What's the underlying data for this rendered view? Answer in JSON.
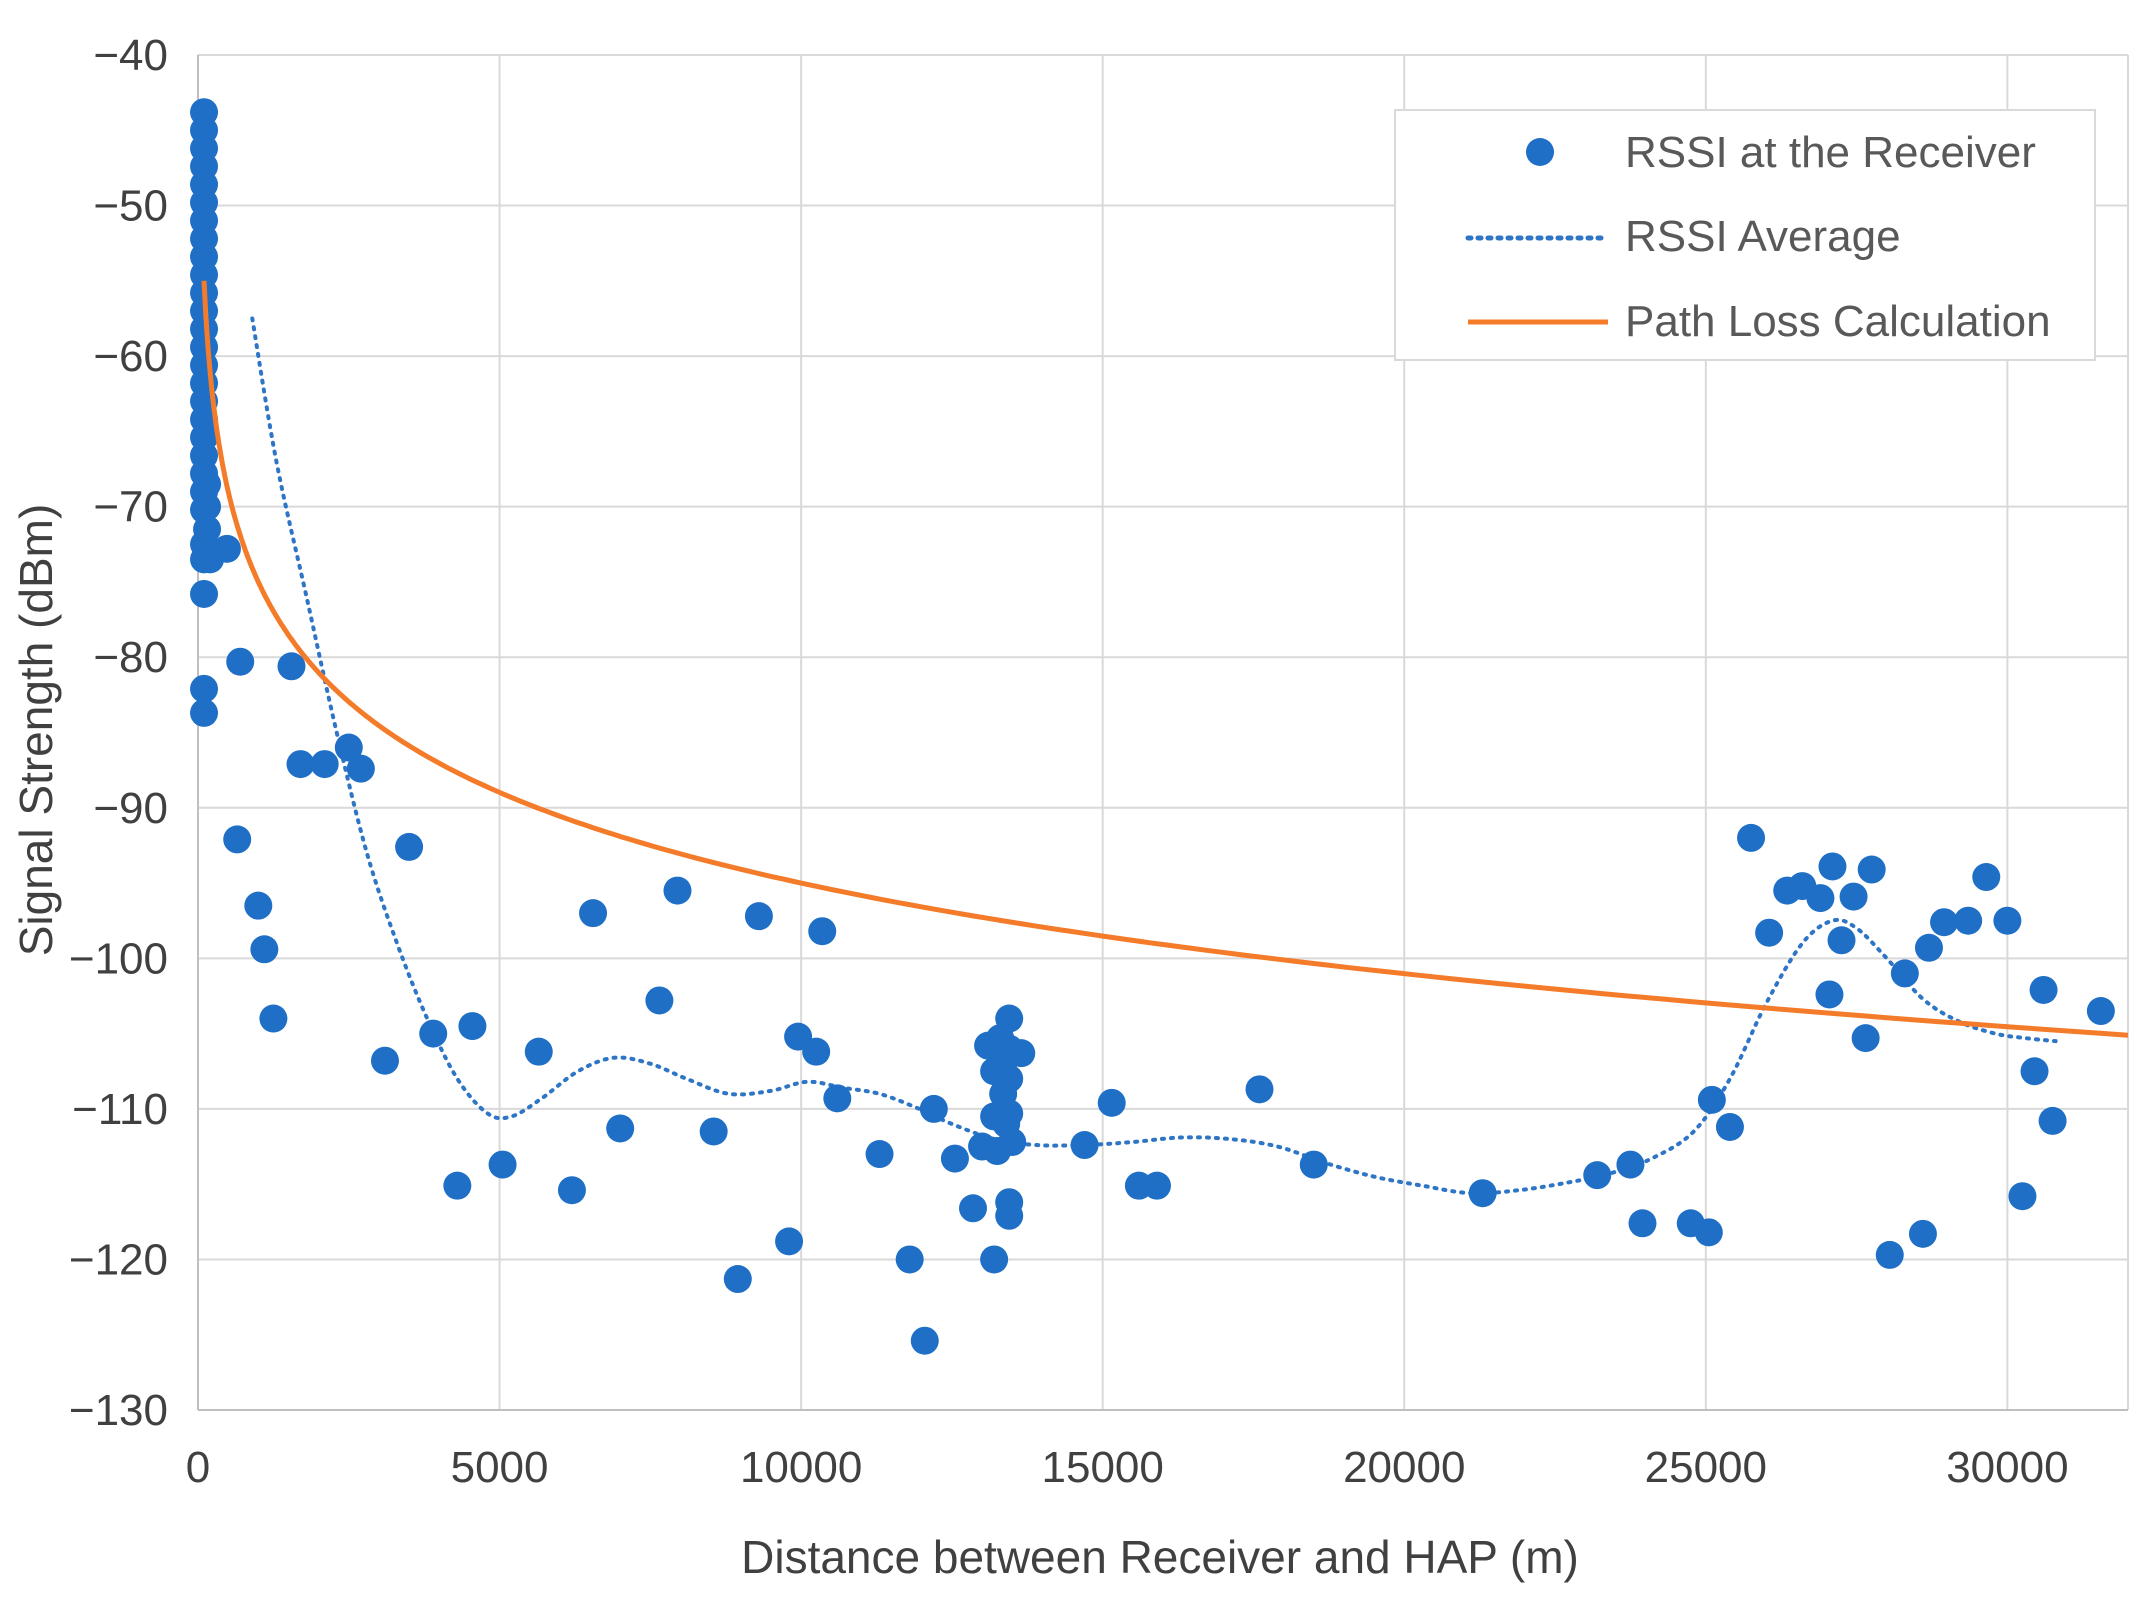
{
  "chart_data": {
    "type": "scatter",
    "title": "",
    "xlabel": "Distance between Receiver and HAP  (m)",
    "ylabel": "Signal Strength (dBm)",
    "xlim": [
      0,
      32000
    ],
    "ylim": [
      -130,
      -40
    ],
    "grid": true,
    "legend_position": "top-right",
    "x_ticks": [
      0,
      5000,
      10000,
      15000,
      20000,
      25000,
      30000
    ],
    "x_tick_labels": [
      "0",
      "5000",
      "10000",
      "15000",
      "20000",
      "25000",
      "30000"
    ],
    "y_ticks": [
      -40,
      -50,
      -60,
      -70,
      -80,
      -90,
      -100,
      -110,
      -120,
      -130
    ],
    "y_tick_labels": [
      "−40",
      "−50",
      "−60",
      "−70",
      "−80",
      "−90",
      "−100",
      "−110",
      "−120",
      "−130"
    ],
    "colors": {
      "rssi": "#1f6fc6",
      "average": "#2e75c6",
      "pathloss": "#f47b2a",
      "grid": "#d9d9d9",
      "axis": "#bfbfbf"
    },
    "series": [
      {
        "name": "RSSI at the Receiver",
        "kind": "scatter",
        "points": [
          [
            100,
            -43.8
          ],
          [
            100,
            -45
          ],
          [
            100,
            -46.2
          ],
          [
            100,
            -47.4
          ],
          [
            100,
            -48.6
          ],
          [
            100,
            -49.8
          ],
          [
            100,
            -51
          ],
          [
            100,
            -52.2
          ],
          [
            100,
            -53.4
          ],
          [
            100,
            -54.6
          ],
          [
            100,
            -55.8
          ],
          [
            100,
            -57
          ],
          [
            100,
            -58.2
          ],
          [
            100,
            -59.4
          ],
          [
            100,
            -60.6
          ],
          [
            100,
            -61.8
          ],
          [
            100,
            -63
          ],
          [
            100,
            -64.2
          ],
          [
            100,
            -65.4
          ],
          [
            100,
            -66.6
          ],
          [
            100,
            -67.8
          ],
          [
            100,
            -69
          ],
          [
            100,
            -70.2
          ],
          [
            150,
            -68.5
          ],
          [
            150,
            -70
          ],
          [
            150,
            -71.5
          ],
          [
            100,
            -72.5
          ],
          [
            100,
            -73.5
          ],
          [
            200,
            -73.5
          ],
          [
            480,
            -72.8
          ],
          [
            100,
            -75.8
          ],
          [
            100,
            -82.1
          ],
          [
            100,
            -83.7
          ],
          [
            700,
            -80.3
          ],
          [
            1550,
            -80.6
          ],
          [
            1700,
            -87.1
          ],
          [
            2100,
            -87.1
          ],
          [
            2500,
            -86
          ],
          [
            2700,
            -87.4
          ],
          [
            650,
            -92.1
          ],
          [
            3500,
            -92.6
          ],
          [
            1000,
            -96.5
          ],
          [
            1100,
            -99.4
          ],
          [
            1250,
            -104
          ],
          [
            3100,
            -106.8
          ],
          [
            3900,
            -105
          ],
          [
            4550,
            -104.5
          ],
          [
            4300,
            -115.1
          ],
          [
            5050,
            -113.7
          ],
          [
            5650,
            -106.2
          ],
          [
            6200,
            -115.4
          ],
          [
            6550,
            -97
          ],
          [
            7000,
            -111.3
          ],
          [
            7650,
            -102.8
          ],
          [
            7950,
            -95.5
          ],
          [
            8550,
            -111.5
          ],
          [
            8950,
            -121.3
          ],
          [
            9300,
            -97.2
          ],
          [
            9800,
            -118.8
          ],
          [
            9950,
            -105.2
          ],
          [
            10250,
            -106.2
          ],
          [
            10350,
            -98.2
          ],
          [
            10600,
            -109.3
          ],
          [
            11300,
            -113
          ],
          [
            11800,
            -120
          ],
          [
            12050,
            -125.4
          ],
          [
            12200,
            -110
          ],
          [
            12550,
            -113.3
          ],
          [
            12850,
            -116.6
          ],
          [
            13000,
            -112.5
          ],
          [
            13200,
            -120
          ],
          [
            13100,
            -105.8
          ],
          [
            13200,
            -107.5
          ],
          [
            13200,
            -110.5
          ],
          [
            13250,
            -112.8
          ],
          [
            13300,
            -105.3
          ],
          [
            13350,
            -107
          ],
          [
            13350,
            -109
          ],
          [
            13400,
            -111
          ],
          [
            13450,
            -104
          ],
          [
            13450,
            -106
          ],
          [
            13450,
            -108
          ],
          [
            13450,
            -110.3
          ],
          [
            13500,
            -112.2
          ],
          [
            13450,
            -116.2
          ],
          [
            13450,
            -117.1
          ],
          [
            13650,
            -106.3
          ],
          [
            14700,
            -112.4
          ],
          [
            15150,
            -109.6
          ],
          [
            15600,
            -115.1
          ],
          [
            15900,
            -115.1
          ],
          [
            17600,
            -108.7
          ],
          [
            18500,
            -113.7
          ],
          [
            21300,
            -115.6
          ],
          [
            23200,
            -114.4
          ],
          [
            23750,
            -113.7
          ],
          [
            23950,
            -117.6
          ],
          [
            24750,
            -117.6
          ],
          [
            25050,
            -118.2
          ],
          [
            25100,
            -109.4
          ],
          [
            25400,
            -111.2
          ],
          [
            25750,
            -92
          ],
          [
            26050,
            -98.3
          ],
          [
            26350,
            -95.5
          ],
          [
            26600,
            -95.2
          ],
          [
            26900,
            -96
          ],
          [
            27050,
            -102.4
          ],
          [
            27100,
            -93.9
          ],
          [
            27250,
            -98.8
          ],
          [
            27450,
            -95.9
          ],
          [
            27650,
            -105.3
          ],
          [
            27750,
            -94.1
          ],
          [
            28050,
            -119.7
          ],
          [
            28300,
            -101
          ],
          [
            28600,
            -118.3
          ],
          [
            28700,
            -99.3
          ],
          [
            28950,
            -97.6
          ],
          [
            29350,
            -97.5
          ],
          [
            29650,
            -94.6
          ],
          [
            30000,
            -97.5
          ],
          [
            30250,
            -115.8
          ],
          [
            30450,
            -107.5
          ],
          [
            30600,
            -102.1
          ],
          [
            30750,
            -110.8
          ],
          [
            31550,
            -103.5
          ]
        ]
      },
      {
        "name": "RSSI Average",
        "kind": "line-dotted",
        "points": [
          [
            900,
            -57.5
          ],
          [
            1300,
            -67
          ],
          [
            1800,
            -76
          ],
          [
            2300,
            -85
          ],
          [
            2800,
            -93
          ],
          [
            3300,
            -99
          ],
          [
            3800,
            -104
          ],
          [
            4300,
            -108
          ],
          [
            4800,
            -110.3
          ],
          [
            5200,
            -110.5
          ],
          [
            5700,
            -109.3
          ],
          [
            6300,
            -107.5
          ],
          [
            6900,
            -106.6
          ],
          [
            7500,
            -107
          ],
          [
            8100,
            -108
          ],
          [
            8800,
            -109
          ],
          [
            9500,
            -108.8
          ],
          [
            10100,
            -108.2
          ],
          [
            10700,
            -108.6
          ],
          [
            11300,
            -109
          ],
          [
            11900,
            -109.9
          ],
          [
            12500,
            -111
          ],
          [
            13200,
            -112
          ],
          [
            13900,
            -112.4
          ],
          [
            14700,
            -112.4
          ],
          [
            15500,
            -112.2
          ],
          [
            16300,
            -111.9
          ],
          [
            17100,
            -112
          ],
          [
            17900,
            -112.5
          ],
          [
            18700,
            -113.6
          ],
          [
            19500,
            -114.5
          ],
          [
            20300,
            -115.1
          ],
          [
            21100,
            -115.6
          ],
          [
            21900,
            -115.4
          ],
          [
            22700,
            -114.9
          ],
          [
            23400,
            -114.3
          ],
          [
            24100,
            -113.3
          ],
          [
            24800,
            -111.5
          ],
          [
            25400,
            -108
          ],
          [
            26000,
            -103
          ],
          [
            26600,
            -99
          ],
          [
            27100,
            -97.5
          ],
          [
            27500,
            -98
          ],
          [
            28000,
            -100
          ],
          [
            28600,
            -102.7
          ],
          [
            29200,
            -104.2
          ],
          [
            29800,
            -105
          ],
          [
            30300,
            -105.3
          ],
          [
            30800,
            -105.5
          ]
        ]
      },
      {
        "name": "Path Loss Calculation",
        "kind": "line",
        "formula": "y = -55 - 10*log10(x/100)*2.0",
        "x_range": [
          100,
          32000
        ]
      }
    ]
  }
}
